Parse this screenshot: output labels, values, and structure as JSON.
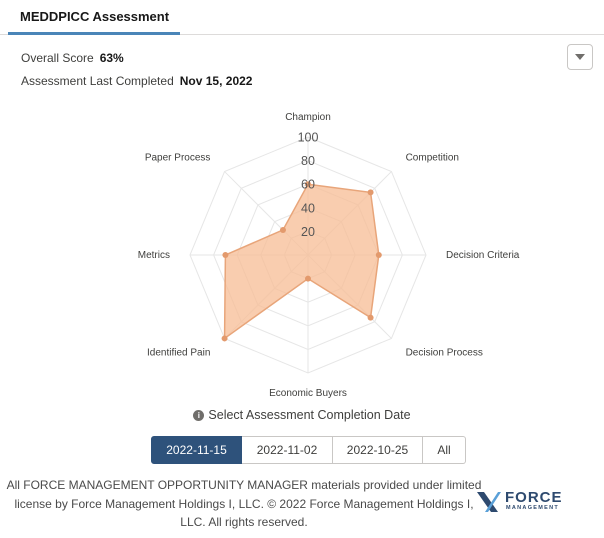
{
  "tab": {
    "label": "MEDDPICC Assessment"
  },
  "summary": {
    "score_label": "Overall Score",
    "score_value": "63%",
    "completed_label": "Assessment Last Completed",
    "completed_value": "Nov 15, 2022"
  },
  "chart_data": {
    "type": "radar",
    "axes": [
      "Champion",
      "Competition",
      "Decision Criteria",
      "Decision Process",
      "Economic Buyers",
      "Identified Pain",
      "Metrics",
      "Paper Process"
    ],
    "values": [
      60,
      75,
      60,
      75,
      20,
      100,
      70,
      30
    ],
    "rlim": [
      0,
      100
    ],
    "tick_labels": [
      "20",
      "40",
      "60",
      "80",
      "100"
    ],
    "grid": true,
    "fill_color": "#f7bc94",
    "line_color": "#e8a57a"
  },
  "date_selector": {
    "label": "Select Assessment Completion Date",
    "options": [
      {
        "label": "2022-11-15",
        "active": true
      },
      {
        "label": "2022-11-02",
        "active": false
      },
      {
        "label": "2022-10-25",
        "active": false
      },
      {
        "label": "All",
        "active": false
      }
    ]
  },
  "footer": {
    "line1": "All FORCE MANAGEMENT OPPORTUNITY MANAGER materials provided under limited",
    "line2": "license by Force Management Holdings I, LLC. © 2022 Force Management Holdings I,",
    "line3": "LLC. All rights reserved."
  },
  "logo": {
    "name": "FORCE",
    "sub": "MANAGEMENT",
    "icon": "force-management-logo"
  },
  "colors": {
    "accent": "#2e527b",
    "tab_underline": "#4a85b8"
  }
}
